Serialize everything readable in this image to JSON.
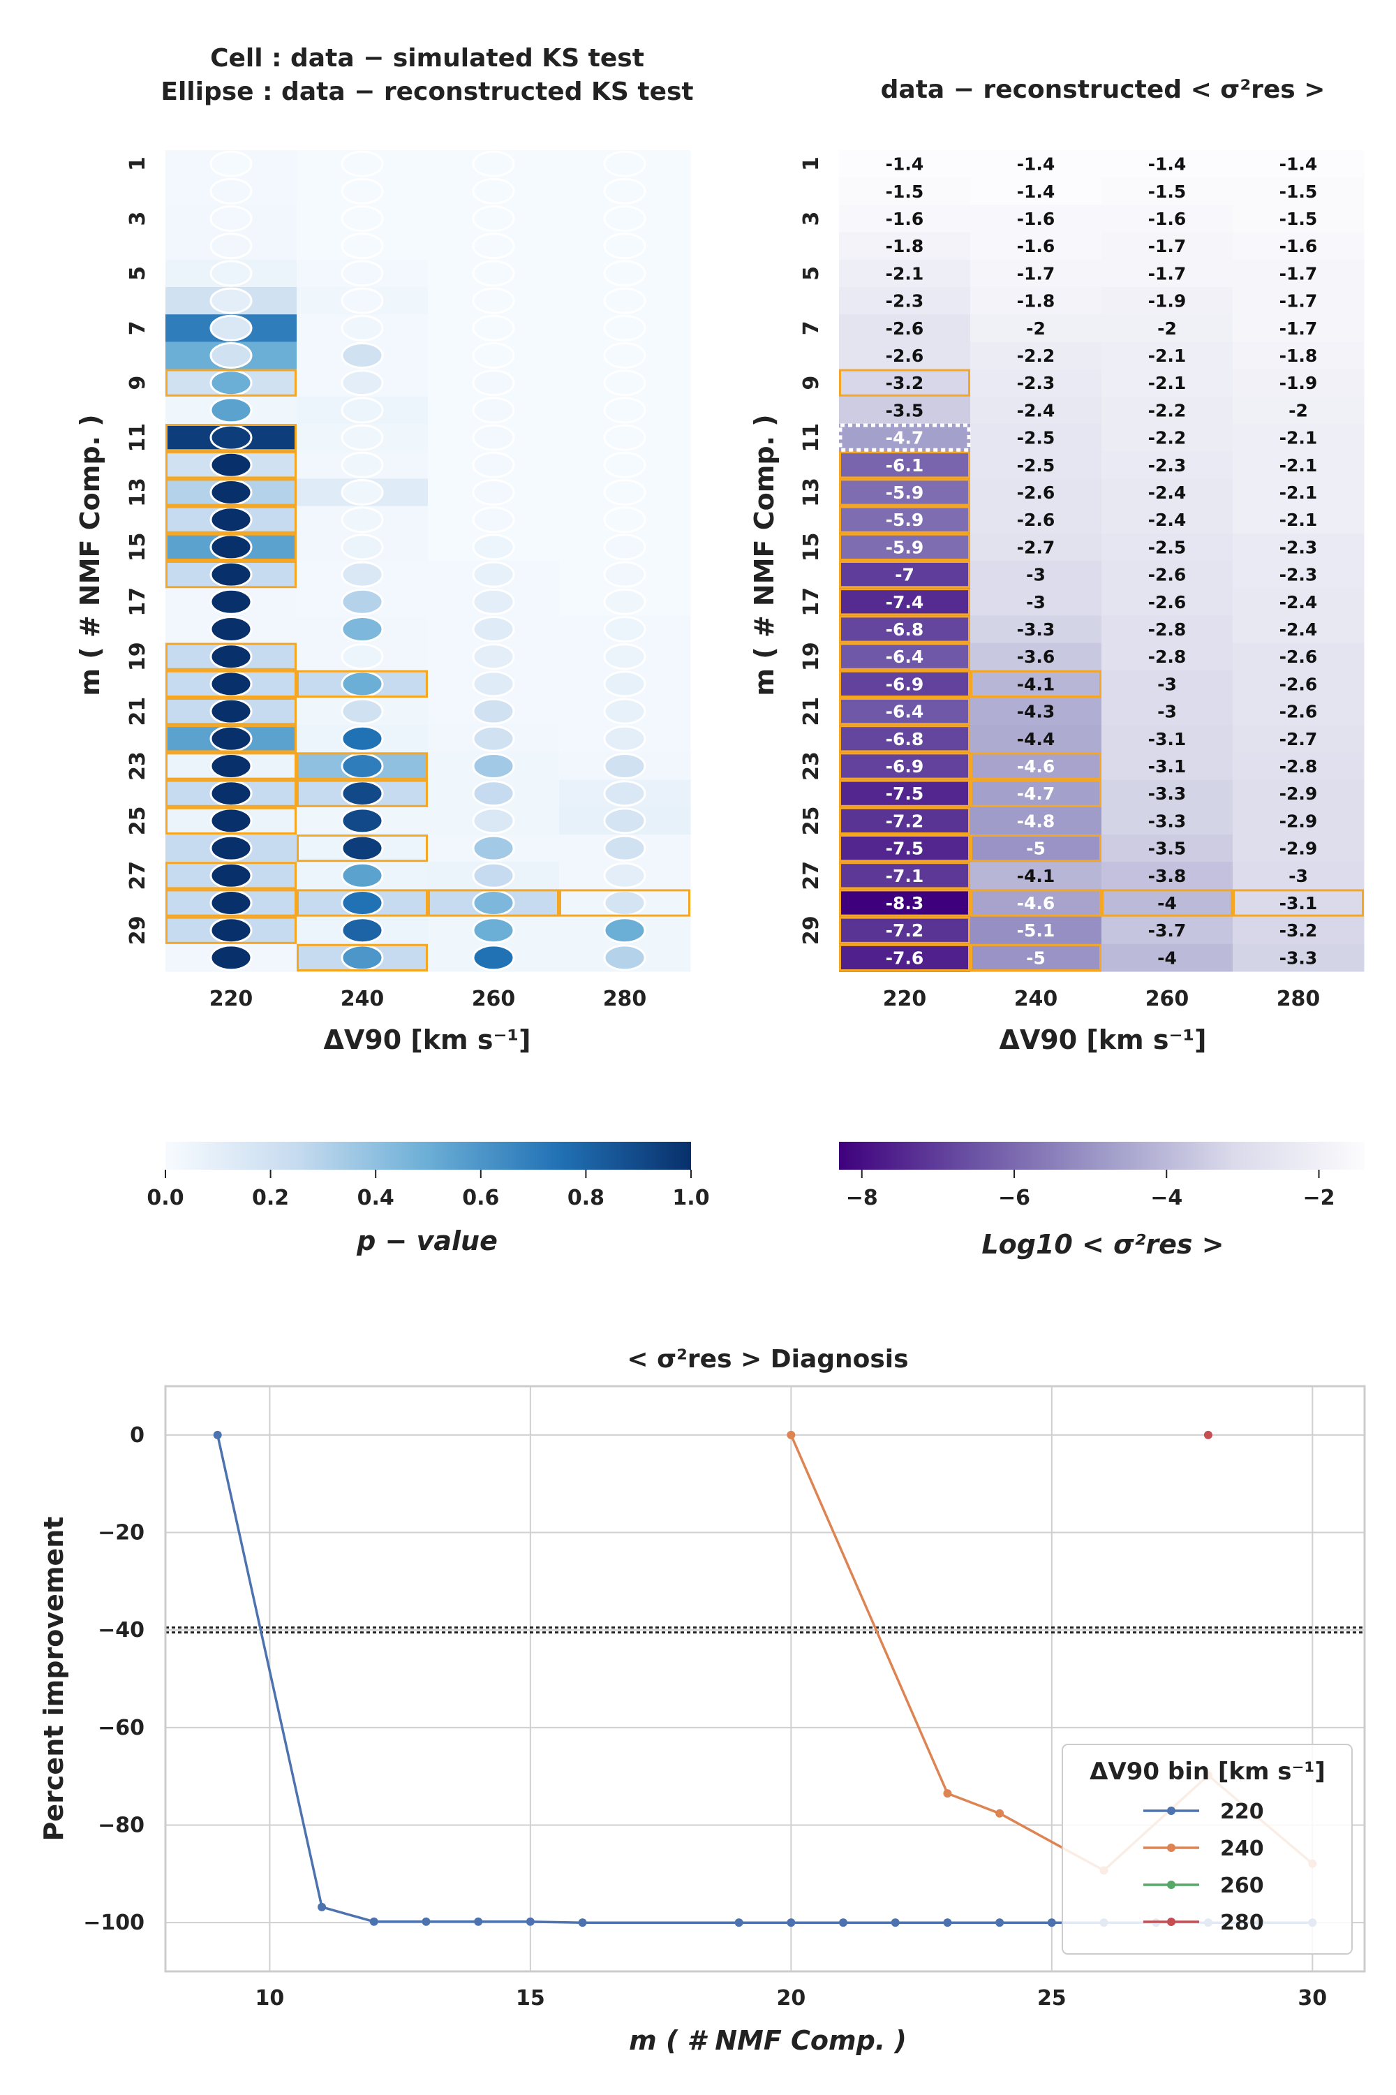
{
  "chart_data": [
    {
      "type": "heatmap",
      "id": "ks",
      "title_lines": [
        "Cell : data − simulated KS test",
        "Ellipse : data − reconstructed KS test"
      ],
      "xlabel": "ΔV90 [km s⁻¹]",
      "ylabel": "m ( # NMF Comp. )",
      "x_categories": [
        "220",
        "240",
        "260",
        "280"
      ],
      "y_categories": [
        1,
        2,
        3,
        4,
        5,
        6,
        7,
        8,
        9,
        10,
        11,
        12,
        13,
        14,
        15,
        16,
        17,
        18,
        19,
        20,
        21,
        22,
        23,
        24,
        25,
        26,
        27,
        28,
        29,
        30
      ],
      "y_tick_labels": [
        "1",
        "3",
        "5",
        "7",
        "9",
        "11",
        "13",
        "15",
        "17",
        "19",
        "21",
        "23",
        "25",
        "27",
        "29"
      ],
      "colorbar": {
        "label": "p − value",
        "min": 0.0,
        "max": 1.0,
        "ticks": [
          "0.0",
          "0.2",
          "0.4",
          "0.6",
          "0.8",
          "1.0"
        ],
        "colormap": "Blues"
      },
      "cell_values": [
        [
          0.02,
          0.01,
          0.01,
          0.01
        ],
        [
          0.02,
          0.01,
          0.01,
          0.01
        ],
        [
          0.03,
          0.01,
          0.01,
          0.01
        ],
        [
          0.03,
          0.01,
          0.01,
          0.01
        ],
        [
          0.06,
          0.02,
          0.01,
          0.01
        ],
        [
          0.2,
          0.04,
          0.01,
          0.01
        ],
        [
          0.7,
          0.02,
          0.01,
          0.01
        ],
        [
          0.5,
          0.02,
          0.01,
          0.01
        ],
        [
          0.2,
          0.02,
          0.01,
          0.01
        ],
        [
          0.04,
          0.05,
          0.01,
          0.01
        ],
        [
          0.95,
          0.04,
          0.01,
          0.01
        ],
        [
          0.2,
          0.03,
          0.01,
          0.01
        ],
        [
          0.3,
          0.12,
          0.01,
          0.01
        ],
        [
          0.25,
          0.03,
          0.01,
          0.01
        ],
        [
          0.55,
          0.03,
          0.01,
          0.01
        ],
        [
          0.25,
          0.02,
          0.02,
          0.01
        ],
        [
          0.03,
          0.02,
          0.02,
          0.01
        ],
        [
          0.03,
          0.03,
          0.02,
          0.02
        ],
        [
          0.25,
          0.03,
          0.02,
          0.02
        ],
        [
          0.25,
          0.25,
          0.02,
          0.02
        ],
        [
          0.25,
          0.04,
          0.02,
          0.02
        ],
        [
          0.55,
          0.05,
          0.03,
          0.02
        ],
        [
          0.06,
          0.4,
          0.04,
          0.03
        ],
        [
          0.25,
          0.25,
          0.04,
          0.07
        ],
        [
          0.06,
          0.04,
          0.04,
          0.08
        ],
        [
          0.25,
          0.05,
          0.03,
          0.03
        ],
        [
          0.25,
          0.05,
          0.06,
          0.03
        ],
        [
          0.25,
          0.25,
          0.25,
          0.04
        ],
        [
          0.25,
          0.05,
          0.04,
          0.04
        ],
        [
          0.03,
          0.25,
          0.04,
          0.04
        ]
      ],
      "ellipse_values": [
        [
          0.01,
          0.01,
          0.01,
          0.01
        ],
        [
          0.02,
          0.01,
          0.01,
          0.01
        ],
        [
          0.02,
          0.01,
          0.01,
          0.01
        ],
        [
          0.03,
          0.01,
          0.01,
          0.01
        ],
        [
          0.05,
          0.02,
          0.01,
          0.01
        ],
        [
          0.1,
          0.02,
          0.01,
          0.01
        ],
        [
          0.15,
          0.04,
          0.01,
          0.01
        ],
        [
          0.2,
          0.2,
          0.01,
          0.01
        ],
        [
          0.5,
          0.1,
          0.02,
          0.01
        ],
        [
          0.55,
          0.05,
          0.02,
          0.01
        ],
        [
          0.95,
          0.04,
          0.02,
          0.01
        ],
        [
          1.0,
          0.04,
          0.02,
          0.01
        ],
        [
          1.0,
          0.04,
          0.02,
          0.01
        ],
        [
          1.0,
          0.04,
          0.02,
          0.01
        ],
        [
          1.0,
          0.06,
          0.05,
          0.02
        ],
        [
          1.0,
          0.15,
          0.08,
          0.03
        ],
        [
          1.0,
          0.3,
          0.1,
          0.04
        ],
        [
          1.0,
          0.45,
          0.12,
          0.05
        ],
        [
          1.0,
          0.05,
          0.1,
          0.06
        ],
        [
          1.0,
          0.5,
          0.12,
          0.08
        ],
        [
          1.0,
          0.2,
          0.2,
          0.08
        ],
        [
          1.0,
          0.75,
          0.2,
          0.1
        ],
        [
          1.0,
          0.7,
          0.35,
          0.2
        ],
        [
          1.0,
          0.9,
          0.25,
          0.15
        ],
        [
          1.0,
          0.9,
          0.15,
          0.18
        ],
        [
          1.0,
          0.95,
          0.35,
          0.2
        ],
        [
          1.0,
          0.55,
          0.25,
          0.1
        ],
        [
          1.0,
          0.75,
          0.45,
          0.18
        ],
        [
          1.0,
          0.8,
          0.5,
          0.5
        ],
        [
          1.0,
          0.6,
          0.75,
          0.3
        ]
      ],
      "highlight_boxes": [
        [
          9,
          220
        ],
        [
          11,
          220
        ],
        [
          12,
          220
        ],
        [
          13,
          220
        ],
        [
          14,
          220
        ],
        [
          15,
          220
        ],
        [
          16,
          220
        ],
        [
          19,
          220
        ],
        [
          20,
          220
        ],
        [
          20,
          240
        ],
        [
          21,
          220
        ],
        [
          22,
          220
        ],
        [
          23,
          220
        ],
        [
          23,
          240
        ],
        [
          24,
          220
        ],
        [
          24,
          240
        ],
        [
          25,
          220
        ],
        [
          26,
          240
        ],
        [
          27,
          220
        ],
        [
          28,
          220
        ],
        [
          28,
          240
        ],
        [
          28,
          260
        ],
        [
          28,
          280
        ],
        [
          29,
          220
        ],
        [
          30,
          240
        ]
      ]
    },
    {
      "type": "heatmap",
      "id": "sigma",
      "title": "data − reconstructed < σ²res >",
      "xlabel": "ΔV90 [km s⁻¹]",
      "ylabel": "m ( # NMF Comp. )",
      "x_categories": [
        "220",
        "240",
        "260",
        "280"
      ],
      "y_tick_labels": [
        "1",
        "3",
        "5",
        "7",
        "9",
        "11",
        "13",
        "15",
        "17",
        "19",
        "21",
        "23",
        "25",
        "27",
        "29"
      ],
      "colorbar": {
        "label": "Log10 < σ²res >",
        "min": -8.3,
        "max": -1.4,
        "ticks": [
          "−8",
          "−6",
          "−4",
          "−2"
        ],
        "colormap": "Purples_r"
      },
      "values": [
        [
          "-1.4",
          "-1.4",
          "-1.4",
          "-1.4"
        ],
        [
          "-1.5",
          "-1.4",
          "-1.5",
          "-1.5"
        ],
        [
          "-1.6",
          "-1.6",
          "-1.6",
          "-1.5"
        ],
        [
          "-1.8",
          "-1.6",
          "-1.7",
          "-1.6"
        ],
        [
          "-2.1",
          "-1.7",
          "-1.7",
          "-1.7"
        ],
        [
          "-2.3",
          "-1.8",
          "-1.9",
          "-1.7"
        ],
        [
          "-2.6",
          "-2",
          "-2",
          "-1.7"
        ],
        [
          "-2.6",
          "-2.2",
          "-2.1",
          "-1.8"
        ],
        [
          "-3.2",
          "-2.3",
          "-2.1",
          "-1.9"
        ],
        [
          "-3.5",
          "-2.4",
          "-2.2",
          "-2"
        ],
        [
          "-4.7",
          "-2.5",
          "-2.2",
          "-2.1"
        ],
        [
          "-6.1",
          "-2.5",
          "-2.3",
          "-2.1"
        ],
        [
          "-5.9",
          "-2.6",
          "-2.4",
          "-2.1"
        ],
        [
          "-5.9",
          "-2.6",
          "-2.4",
          "-2.1"
        ],
        [
          "-5.9",
          "-2.7",
          "-2.5",
          "-2.3"
        ],
        [
          "-7",
          "-3",
          "-2.6",
          "-2.3"
        ],
        [
          "-7.4",
          "-3",
          "-2.6",
          "-2.4"
        ],
        [
          "-6.8",
          "-3.3",
          "-2.8",
          "-2.4"
        ],
        [
          "-6.4",
          "-3.6",
          "-2.8",
          "-2.6"
        ],
        [
          "-6.9",
          "-4.1",
          "-3",
          "-2.6"
        ],
        [
          "-6.4",
          "-4.3",
          "-3",
          "-2.6"
        ],
        [
          "-6.8",
          "-4.4",
          "-3.1",
          "-2.7"
        ],
        [
          "-6.9",
          "-4.6",
          "-3.1",
          "-2.8"
        ],
        [
          "-7.5",
          "-4.7",
          "-3.3",
          "-2.9"
        ],
        [
          "-7.2",
          "-4.8",
          "-3.3",
          "-2.9"
        ],
        [
          "-7.5",
          "-5",
          "-3.5",
          "-2.9"
        ],
        [
          "-7.1",
          "-4.1",
          "-3.8",
          "-3"
        ],
        [
          "-8.3",
          "-4.6",
          "-4",
          "-3.1"
        ],
        [
          "-7.2",
          "-5.1",
          "-3.7",
          "-3.2"
        ],
        [
          "-7.6",
          "-5",
          "-4",
          "-3.3"
        ]
      ],
      "dotted_box": [
        11,
        220
      ],
      "highlight_boxes": [
        [
          9,
          220
        ],
        [
          12,
          220
        ],
        [
          13,
          220
        ],
        [
          14,
          220
        ],
        [
          15,
          220
        ],
        [
          16,
          220
        ],
        [
          17,
          220
        ],
        [
          18,
          220
        ],
        [
          19,
          220
        ],
        [
          20,
          220
        ],
        [
          20,
          240
        ],
        [
          21,
          220
        ],
        [
          22,
          220
        ],
        [
          23,
          220
        ],
        [
          23,
          240
        ],
        [
          24,
          220
        ],
        [
          24,
          240
        ],
        [
          25,
          220
        ],
        [
          26,
          220
        ],
        [
          26,
          240
        ],
        [
          27,
          220
        ],
        [
          28,
          220
        ],
        [
          28,
          240
        ],
        [
          28,
          260
        ],
        [
          28,
          280
        ],
        [
          29,
          220
        ],
        [
          30,
          220
        ],
        [
          30,
          240
        ]
      ]
    },
    {
      "type": "line",
      "id": "diag",
      "title": "< σ²res > Diagnosis",
      "xlabel": "m ( # NMF Comp. )",
      "ylabel": "Percent improvement",
      "xlim": [
        8,
        31
      ],
      "ylim": [
        -110,
        10
      ],
      "x_ticks": [
        10,
        15,
        20,
        25,
        30
      ],
      "y_ticks": [
        0,
        -20,
        -40,
        -60,
        -80,
        -100
      ],
      "hlines": [
        -39.5,
        -40.5
      ],
      "legend_title": "ΔV90 bin [km s⁻¹]",
      "legend_position": "lower-right",
      "series": [
        {
          "name": "220",
          "color": "#4c72b0",
          "x": [
            9,
            11,
            12,
            13,
            14,
            15,
            16,
            19,
            20,
            21,
            22,
            23,
            24,
            25,
            26,
            27,
            28,
            29,
            30
          ],
          "y": [
            0,
            -96.8,
            -99.8,
            -99.8,
            -99.8,
            -99.8,
            -100,
            -100,
            -100,
            -100,
            -100,
            -100,
            -100,
            -100,
            -100,
            -100,
            -100,
            -100,
            -100
          ]
        },
        {
          "name": "240",
          "color": "#dd8452",
          "x": [
            20,
            23,
            24,
            26,
            28,
            30
          ],
          "y": [
            0,
            -73.5,
            -77.6,
            -89.3,
            -69.8,
            -87.9
          ]
        },
        {
          "name": "260",
          "color": "#55a868",
          "x": [],
          "y": []
        },
        {
          "name": "280",
          "color": "#c44e52",
          "x": [
            28
          ],
          "y": [
            0
          ]
        }
      ]
    }
  ]
}
